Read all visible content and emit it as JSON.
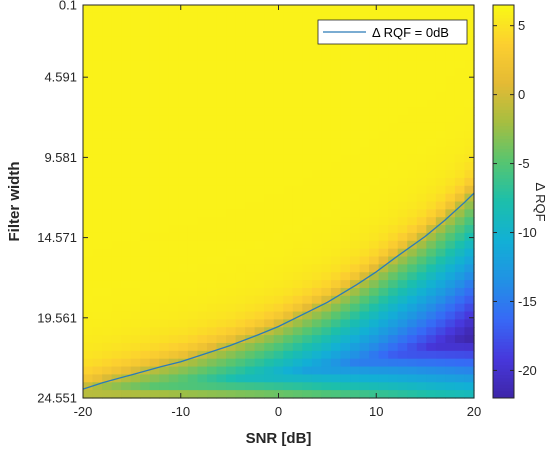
{
  "chart_data": {
    "type": "heatmap",
    "xlabel": "SNR [dB]",
    "ylabel": "Filter width",
    "colorbar_label": "Δ RQF",
    "x_range": [
      -20,
      20
    ],
    "y_range": [
      0.1,
      24.551
    ],
    "y_reversed": true,
    "x_ticks": [
      -20,
      -10,
      0,
      10,
      20
    ],
    "x_tick_labels": [
      "-20",
      "-10",
      "0",
      "10",
      "20"
    ],
    "y_ticks": [
      0.1,
      4.591,
      9.581,
      14.571,
      19.561,
      24.551
    ],
    "y_tick_labels": [
      "0.1",
      "4.591",
      "9.581",
      "14.571",
      "19.561",
      "24.551"
    ],
    "color_range": [
      -22,
      6.5
    ],
    "colorbar_ticks": [
      5,
      0,
      -5,
      -10,
      -15,
      -20
    ],
    "colorbar_tick_labels": [
      "5",
      "0",
      "-5",
      "-10",
      "-15",
      "-20"
    ],
    "colormap": "parula",
    "grid": false,
    "legend": {
      "entries": [
        "Δ RQF = 0dB"
      ],
      "placement": "top-right"
    },
    "contour": {
      "name": "Δ RQF = 0dB",
      "color": "#2a7bb8",
      "x": [
        -20,
        -18,
        -15,
        -12,
        -10,
        -8,
        -5,
        -2,
        0,
        2,
        5,
        8,
        10,
        12,
        15,
        17,
        19,
        20
      ],
      "y": [
        24.0,
        23.6,
        23.1,
        22.6,
        22.3,
        21.9,
        21.3,
        20.6,
        20.1,
        19.5,
        18.6,
        17.5,
        16.7,
        15.8,
        14.5,
        13.5,
        12.4,
        11.8
      ]
    }
  }
}
